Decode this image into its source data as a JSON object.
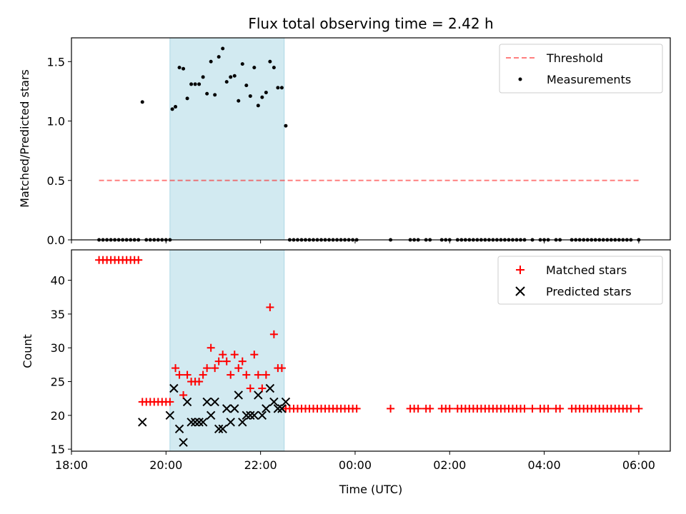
{
  "chart_data": [
    {
      "type": "scatter",
      "title": "Flux total observing time = 2.42 h",
      "xlabel": "",
      "ylabel": "Matched/Predicted stars",
      "xlim": [
        "2024-01-01T18:00",
        "2024-01-02T06:40"
      ],
      "ylim": [
        0,
        1.7
      ],
      "yticks": [
        "0.0",
        "0.5",
        "1.0",
        "1.5"
      ],
      "highlight_span": [
        "20:05",
        "22:30"
      ],
      "highlight_color": "#add8e6",
      "legend_position": "top-right",
      "threshold": {
        "name": "Threshold",
        "value": 0.5,
        "x_range": [
          "18:35",
          "06:00"
        ],
        "color": "#ff0000",
        "style": "dashed"
      },
      "series": [
        {
          "name": "Measurements",
          "color": "#000000",
          "marker": "dot",
          "x": [
            "18:35",
            "18:40",
            "18:45",
            "18:50",
            "18:55",
            "19:00",
            "19:05",
            "19:10",
            "19:15",
            "19:20",
            "19:25",
            "19:30",
            "19:35",
            "19:40",
            "19:45",
            "19:50",
            "19:55",
            "20:00",
            "20:05",
            "20:08",
            "20:12",
            "20:17",
            "20:22",
            "20:27",
            "20:32",
            "20:37",
            "20:42",
            "20:47",
            "20:52",
            "20:57",
            "21:02",
            "21:07",
            "21:12",
            "21:17",
            "21:22",
            "21:27",
            "21:32",
            "21:37",
            "21:42",
            "21:47",
            "21:52",
            "21:57",
            "22:02",
            "22:07",
            "22:12",
            "22:17",
            "22:22",
            "22:27",
            "22:32",
            "22:37",
            "22:42",
            "22:47",
            "22:52",
            "22:57",
            "23:02",
            "23:07",
            "23:12",
            "23:17",
            "23:22",
            "23:27",
            "23:32",
            "23:37",
            "23:42",
            "23:47",
            "23:52",
            "23:57",
            "00:02",
            "00:45",
            "01:10",
            "01:15",
            "01:20",
            "01:30",
            "01:35",
            "01:50",
            "01:55",
            "02:00",
            "02:10",
            "02:15",
            "02:20",
            "02:25",
            "02:30",
            "02:35",
            "02:40",
            "02:45",
            "02:50",
            "02:55",
            "03:00",
            "03:05",
            "03:10",
            "03:15",
            "03:20",
            "03:25",
            "03:30",
            "03:35",
            "03:45",
            "03:55",
            "04:00",
            "04:05",
            "04:15",
            "04:20",
            "04:35",
            "04:40",
            "04:45",
            "04:50",
            "04:55",
            "05:00",
            "05:05",
            "05:10",
            "05:15",
            "05:20",
            "05:25",
            "05:30",
            "05:35",
            "05:40",
            "05:45",
            "05:50",
            "06:00"
          ],
          "y": [
            0,
            0,
            0,
            0,
            0,
            0,
            0,
            0,
            0,
            0,
            0,
            1.16,
            0,
            0,
            0,
            0,
            0,
            0,
            0,
            1.1,
            1.12,
            1.45,
            1.44,
            1.19,
            1.31,
            1.31,
            1.31,
            1.37,
            1.23,
            1.5,
            1.22,
            1.54,
            1.61,
            1.33,
            1.37,
            1.38,
            1.17,
            1.48,
            1.3,
            1.21,
            1.45,
            1.13,
            1.2,
            1.24,
            1.5,
            1.45,
            1.28,
            1.28,
            0.96,
            0,
            0,
            0,
            0,
            0,
            0,
            0,
            0,
            0,
            0,
            0,
            0,
            0,
            0,
            0,
            0,
            0,
            0,
            0,
            0,
            0,
            0,
            0,
            0,
            0,
            0,
            0,
            0,
            0,
            0,
            0,
            0,
            0,
            0,
            0,
            0,
            0,
            0,
            0,
            0,
            0,
            0,
            0,
            0,
            0,
            0,
            0,
            0,
            0,
            0,
            0,
            0,
            0,
            0,
            0,
            0,
            0,
            0,
            0,
            0,
            0,
            0,
            0,
            0,
            0,
            0,
            0,
            0
          ]
        }
      ]
    },
    {
      "type": "scatter",
      "title": "",
      "xlabel": "Time (UTC)",
      "ylabel": "Count",
      "xlim": [
        "2024-01-01T18:00",
        "2024-01-02T06:40"
      ],
      "ylim": [
        14.7,
        44.5
      ],
      "yticks": [
        "15",
        "20",
        "25",
        "30",
        "35",
        "40"
      ],
      "xticks": [
        "18:00",
        "20:00",
        "22:00",
        "00:00",
        "02:00",
        "04:00",
        "06:00"
      ],
      "highlight_span": [
        "20:05",
        "22:30"
      ],
      "highlight_color": "#add8e6",
      "legend_position": "top-right",
      "series": [
        {
          "name": "Matched stars",
          "color": "#ff0000",
          "marker": "plus",
          "x": [
            "18:35",
            "18:40",
            "18:45",
            "18:50",
            "18:55",
            "19:00",
            "19:05",
            "19:10",
            "19:15",
            "19:20",
            "19:25",
            "19:30",
            "19:35",
            "19:40",
            "19:45",
            "19:50",
            "19:55",
            "20:00",
            "20:05",
            "20:12",
            "20:17",
            "20:22",
            "20:27",
            "20:32",
            "20:37",
            "20:42",
            "20:47",
            "20:52",
            "20:57",
            "21:02",
            "21:07",
            "21:12",
            "21:17",
            "21:22",
            "21:27",
            "21:32",
            "21:37",
            "21:42",
            "21:47",
            "21:52",
            "21:57",
            "22:02",
            "22:07",
            "22:12",
            "22:17",
            "22:22",
            "22:27",
            "22:32",
            "22:37",
            "22:42",
            "22:47",
            "22:52",
            "22:57",
            "23:02",
            "23:07",
            "23:12",
            "23:17",
            "23:22",
            "23:27",
            "23:32",
            "23:37",
            "23:42",
            "23:47",
            "23:52",
            "23:57",
            "00:02",
            "00:45",
            "01:10",
            "01:15",
            "01:20",
            "01:30",
            "01:35",
            "01:50",
            "01:55",
            "02:00",
            "02:10",
            "02:15",
            "02:20",
            "02:25",
            "02:30",
            "02:35",
            "02:40",
            "02:45",
            "02:50",
            "02:55",
            "03:00",
            "03:05",
            "03:10",
            "03:15",
            "03:20",
            "03:25",
            "03:30",
            "03:35",
            "03:45",
            "03:55",
            "04:00",
            "04:05",
            "04:15",
            "04:20",
            "04:35",
            "04:40",
            "04:45",
            "04:50",
            "04:55",
            "05:00",
            "05:05",
            "05:10",
            "05:15",
            "05:20",
            "05:25",
            "05:30",
            "05:35",
            "05:40",
            "05:45",
            "05:50",
            "06:00"
          ],
          "y": [
            43,
            43,
            43,
            43,
            43,
            43,
            43,
            43,
            43,
            43,
            43,
            22,
            22,
            22,
            22,
            22,
            22,
            22,
            22,
            27,
            26,
            23,
            26,
            25,
            25,
            25,
            26,
            27,
            30,
            27,
            28,
            29,
            28,
            26,
            29,
            27,
            28,
            26,
            24,
            29,
            26,
            24,
            26,
            36,
            32,
            27,
            27,
            21,
            21,
            21,
            21,
            21,
            21,
            21,
            21,
            21,
            21,
            21,
            21,
            21,
            21,
            21,
            21,
            21,
            21,
            21,
            21,
            21,
            21,
            21,
            21,
            21,
            21,
            21,
            21,
            21,
            21,
            21,
            21,
            21,
            21,
            21,
            21,
            21,
            21,
            21,
            21,
            21,
            21,
            21,
            21,
            21,
            21,
            21,
            21,
            21,
            21,
            21,
            21,
            21,
            21,
            21,
            21,
            21,
            21,
            21,
            21,
            21,
            21,
            21,
            21,
            21,
            21,
            21,
            21,
            21
          ]
        },
        {
          "name": "Predicted stars",
          "color": "#000000",
          "marker": "x",
          "x": [
            "19:30",
            "20:05",
            "20:10",
            "20:17",
            "20:22",
            "20:27",
            "20:32",
            "20:37",
            "20:42",
            "20:47",
            "20:52",
            "20:57",
            "21:02",
            "21:07",
            "21:12",
            "21:17",
            "21:22",
            "21:27",
            "21:32",
            "21:37",
            "21:42",
            "21:47",
            "21:52",
            "21:57",
            "22:02",
            "22:07",
            "22:12",
            "22:17",
            "22:22",
            "22:27",
            "22:32"
          ],
          "y": [
            19,
            20,
            24,
            18,
            16,
            22,
            19,
            19,
            19,
            19,
            22,
            20,
            22,
            18,
            18,
            21,
            19,
            21,
            23,
            19,
            20,
            20,
            20,
            23,
            20,
            21,
            24,
            22,
            21,
            21,
            22
          ]
        }
      ]
    }
  ]
}
